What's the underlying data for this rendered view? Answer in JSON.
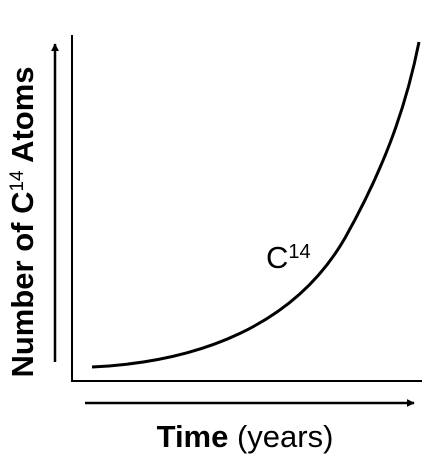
{
  "axes": {
    "y_label": {
      "text": "Number of C",
      "superscript": "14",
      "text_after": " Atoms"
    },
    "x_label": {
      "bold": "Time",
      "rest": " (years)"
    }
  },
  "curve": {
    "label": {
      "text": "C",
      "superscript": "14"
    }
  }
}
